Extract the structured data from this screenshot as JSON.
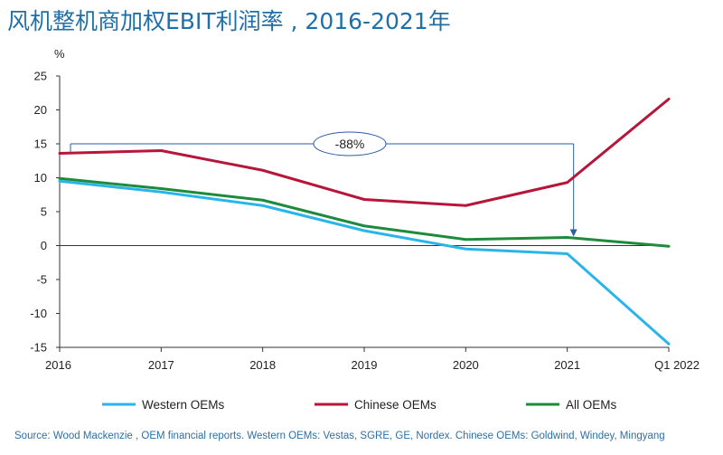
{
  "title": "风机整机商加权EBIT利润率 , 2016-2021年",
  "source": "Source: Wood Mackenzie , OEM financial reports. Western OEMs: Vestas, SGRE, GE, Nordex. Chinese OEMs: Goldwind, Windey, Mingyang",
  "chart_data": {
    "type": "line",
    "title": "风机整机商加权EBIT利润率 , 2016-2021年",
    "ylabel": "%",
    "xlabel": "",
    "categories": [
      "2016",
      "2017",
      "2018",
      "2019",
      "2020",
      "2021",
      "Q1 2022"
    ],
    "ylim": [
      -15,
      25
    ],
    "yticks": [
      25,
      20,
      15,
      10,
      5,
      0,
      -5,
      -10,
      -15
    ],
    "grid": false,
    "legend_position": "bottom",
    "series": [
      {
        "name": "Western OEMs",
        "color": "#29b5ea",
        "values": [
          9.5,
          7.9,
          5.9,
          2.2,
          -0.5,
          -1.2,
          -14.5
        ]
      },
      {
        "name": "Chinese OEMs",
        "color": "#b5163a",
        "values": [
          13.6,
          14.0,
          11.1,
          6.8,
          5.9,
          9.3,
          21.6
        ]
      },
      {
        "name": "All OEMs",
        "color": "#1e8a3c",
        "values": [
          9.9,
          8.4,
          6.7,
          2.9,
          0.9,
          1.2,
          -0.1
        ]
      }
    ],
    "annotation": {
      "text": "-88%",
      "from_category": "2016",
      "to_category": "2021"
    }
  }
}
